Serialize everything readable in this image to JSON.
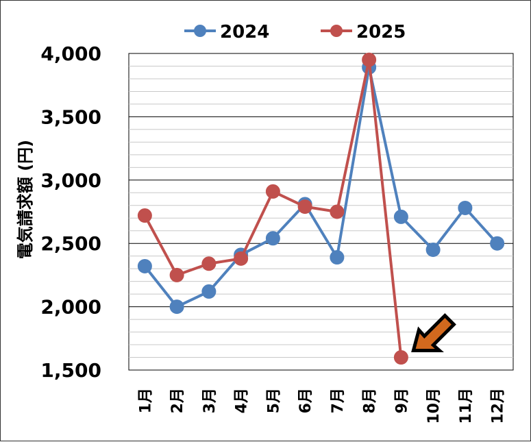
{
  "chart_data": {
    "type": "line",
    "title": "",
    "ylabel": "電気請求額 (円)",
    "xlabel": "",
    "categories": [
      "1月",
      "2月",
      "3月",
      "4月",
      "5月",
      "6月",
      "7月",
      "8月",
      "9月",
      "10月",
      "11月",
      "12月"
    ],
    "ylim": [
      1500,
      4000
    ],
    "yticks": [
      "1,500",
      "2,000",
      "2,500",
      "3,000",
      "3,500",
      "4,000"
    ],
    "grid": "horizontal",
    "legend_position": "top",
    "series": [
      {
        "name": "2024",
        "color": "#4f81bd",
        "values": [
          2320,
          2000,
          2120,
          2410,
          2540,
          2810,
          2390,
          3890,
          2710,
          2450,
          2780,
          2500
        ]
      },
      {
        "name": "2025",
        "color": "#c0504d",
        "values": [
          2720,
          2250,
          2340,
          2380,
          2910,
          2790,
          2750,
          3950,
          1600,
          null,
          null,
          null
        ]
      }
    ],
    "annotation": {
      "type": "arrow",
      "icon": "orange-arrow-icon",
      "color": "#d2691e",
      "target_category": "9月",
      "target_series": "2025"
    }
  }
}
